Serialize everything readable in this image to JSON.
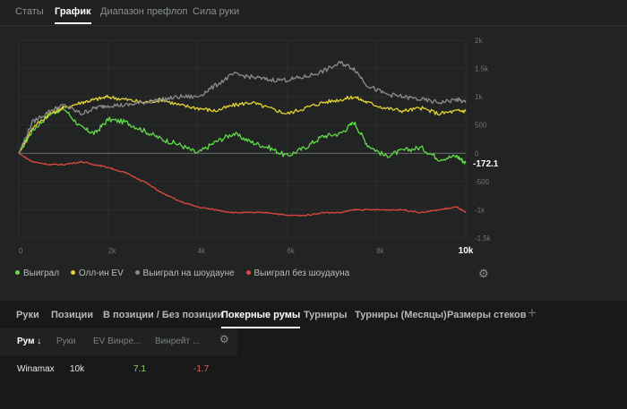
{
  "top_tabs": [
    "Статы",
    "График",
    "Диапазон префлоп",
    "Сила руки"
  ],
  "chart_data": {
    "type": "line",
    "x_ticks": [
      "0",
      "2k",
      "4k",
      "6k",
      "8k",
      "10k"
    ],
    "y_ticks": [
      "2k",
      "1.5k",
      "1k",
      "500",
      "0",
      "-500",
      "-1k",
      "-1.5k"
    ],
    "xlim": [
      0,
      10000
    ],
    "ylim": [
      -1500,
      2000
    ],
    "end_label": "-172.1",
    "series": [
      {
        "name": "Выиграл",
        "color": "#5fdc46",
        "x": [
          0,
          300,
          700,
          1000,
          1400,
          1700,
          2000,
          2400,
          2800,
          3200,
          3600,
          4000,
          4400,
          4800,
          5200,
          5600,
          6000,
          6400,
          6800,
          7200,
          7500,
          7800,
          8200,
          8600,
          9000,
          9400,
          9800,
          10000
        ],
        "y": [
          0,
          400,
          700,
          800,
          450,
          350,
          600,
          550,
          400,
          250,
          150,
          0,
          200,
          350,
          200,
          100,
          -50,
          100,
          300,
          350,
          550,
          150,
          -50,
          50,
          100,
          -100,
          -50,
          -172
        ]
      },
      {
        "name": "Олл-ин EV",
        "color": "#e3d335",
        "x": [
          0,
          300,
          700,
          1000,
          1400,
          1700,
          2000,
          2400,
          2800,
          3200,
          3600,
          4000,
          4400,
          4800,
          5200,
          5600,
          6000,
          6400,
          6800,
          7200,
          7500,
          7800,
          8200,
          8600,
          9000,
          9400,
          9800,
          10000
        ],
        "y": [
          0,
          450,
          700,
          800,
          900,
          950,
          1000,
          950,
          900,
          950,
          850,
          800,
          750,
          850,
          900,
          800,
          700,
          800,
          900,
          950,
          1000,
          900,
          800,
          750,
          800,
          700,
          750,
          750
        ]
      },
      {
        "name": "Выиграл на шоудауне",
        "color": "#8c8c8c",
        "x": [
          0,
          300,
          700,
          1000,
          1400,
          1700,
          2000,
          2400,
          2800,
          3200,
          3600,
          4000,
          4400,
          4800,
          5200,
          5600,
          6000,
          6400,
          6800,
          7200,
          7500,
          7800,
          8200,
          8600,
          9000,
          9400,
          9800,
          10000
        ],
        "y": [
          0,
          550,
          750,
          850,
          700,
          800,
          850,
          850,
          900,
          950,
          1000,
          1000,
          1200,
          1400,
          1350,
          1300,
          1300,
          1350,
          1450,
          1600,
          1500,
          1200,
          1050,
          1000,
          950,
          900,
          950,
          900
        ]
      },
      {
        "name": "Выиграл без шоудауна",
        "color": "#e0483f",
        "x": [
          0,
          300,
          700,
          1000,
          1400,
          1700,
          2000,
          2400,
          2800,
          3200,
          3600,
          4000,
          4400,
          4800,
          5200,
          5600,
          6000,
          6400,
          6800,
          7200,
          7500,
          7800,
          8200,
          8600,
          9000,
          9400,
          9800,
          10000
        ],
        "y": [
          0,
          -150,
          -200,
          -200,
          -150,
          -200,
          -250,
          -350,
          -500,
          -700,
          -850,
          -950,
          -1000,
          -1050,
          -1050,
          -1050,
          -1100,
          -1100,
          -1050,
          -1050,
          -1000,
          -1000,
          -1000,
          -1000,
          -1050,
          -1000,
          -950,
          -1050
        ]
      }
    ]
  },
  "bottom_tabs": [
    "Руки",
    "Позиции",
    "В позиции / Без позиции",
    "Покерные румы",
    "Турниры",
    "Турниры (Месяцы)",
    "Размеры стеков"
  ],
  "plus_label": "+",
  "columns": {
    "room": "Рум ↓",
    "hands": "Руки",
    "ev": "EV Винре...",
    "won": "Винрейт ..."
  },
  "rows": [
    {
      "room": "Winamax",
      "hands": "10k",
      "ev": "7.1",
      "won": "-1.7"
    }
  ],
  "colors": {
    "positive": "#8fd16a",
    "negative": "#e0675e"
  }
}
